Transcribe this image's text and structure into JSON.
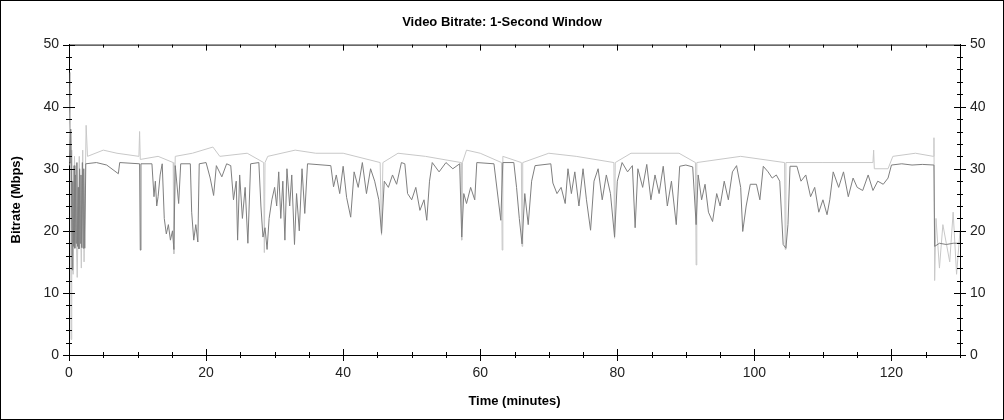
{
  "chart_data": {
    "type": "line",
    "title": "Video Bitrate: 1-Second Window",
    "xlabel": "Time (minutes)",
    "ylabel": "Bitrate (Mbps)",
    "marker": "none",
    "xlim": [
      0,
      130
    ],
    "xticks": [
      0,
      {
        "value": 5,
        "label": null
      },
      {
        "value": 10,
        "label": null
      },
      {
        "value": 15,
        "label": null
      },
      20,
      {
        "value": 25,
        "label": null
      },
      {
        "value": 30,
        "label": null
      },
      {
        "value": 35,
        "label": null
      },
      40,
      {
        "value": 45,
        "label": null
      },
      {
        "value": 50,
        "label": null
      },
      {
        "value": 55,
        "label": null
      },
      60,
      {
        "value": 65,
        "label": null
      },
      {
        "value": 70,
        "label": null
      },
      {
        "value": 75,
        "label": null
      },
      80,
      {
        "value": 85,
        "label": null
      },
      {
        "value": 90,
        "label": null
      },
      {
        "value": 95,
        "label": null
      },
      100,
      {
        "value": 105,
        "label": null
      },
      {
        "value": 110,
        "label": null
      },
      {
        "value": 115,
        "label": null
      },
      120,
      {
        "value": 125,
        "label": null
      },
      {
        "value": 130,
        "label": null
      }
    ],
    "ylim": [
      0,
      50
    ],
    "yticks": [
      0,
      {
        "value": 2,
        "label": null
      },
      {
        "value": 4,
        "label": null
      },
      {
        "value": 6,
        "label": null
      },
      {
        "value": 8,
        "label": null
      },
      10,
      {
        "value": 12,
        "label": null
      },
      {
        "value": 14,
        "label": null
      },
      {
        "value": 16,
        "label": null
      },
      {
        "value": 18,
        "label": null
      },
      20,
      {
        "value": 22,
        "label": null
      },
      {
        "value": 24,
        "label": null
      },
      {
        "value": 26,
        "label": null
      },
      {
        "value": 28,
        "label": null
      },
      30,
      {
        "value": 32,
        "label": null
      },
      {
        "value": 34,
        "label": null
      },
      {
        "value": 36,
        "label": null
      },
      {
        "value": 38,
        "label": null
      },
      40,
      {
        "value": 42,
        "label": null
      },
      {
        "value": 44,
        "label": null
      },
      {
        "value": 46,
        "label": null
      },
      {
        "value": 48,
        "label": null
      },
      50
    ],
    "y2lim": [
      0,
      50
    ],
    "y2ticks": [
      0,
      {
        "value": 2,
        "label": null
      },
      {
        "value": 4,
        "label": null
      },
      {
        "value": 6,
        "label": null
      },
      {
        "value": 8,
        "label": null
      },
      10,
      {
        "value": 12,
        "label": null
      },
      {
        "value": 14,
        "label": null
      },
      {
        "value": 16,
        "label": null
      },
      {
        "value": 18,
        "label": null
      },
      20,
      {
        "value": 22,
        "label": null
      },
      {
        "value": 24,
        "label": null
      },
      {
        "value": 26,
        "label": null
      },
      {
        "value": 28,
        "label": null
      },
      30,
      {
        "value": 32,
        "label": null
      },
      {
        "value": 34,
        "label": null
      },
      {
        "value": 36,
        "label": null
      },
      {
        "value": 38,
        "label": null
      },
      40,
      {
        "value": 42,
        "label": null
      },
      {
        "value": 44,
        "label": null
      },
      {
        "value": 46,
        "label": null
      },
      {
        "value": 48,
        "label": null
      },
      50
    ],
    "series": [
      {
        "color": "#7f7f7f",
        "x": [
          0,
          0.15,
          0.25,
          0.35,
          0.45,
          0.55,
          0.65,
          0.75,
          0.85,
          0.95,
          1.05,
          1.15,
          1.25,
          1.35,
          1.45,
          1.55,
          1.65,
          1.75,
          1.85,
          1.95,
          2.05,
          2.15,
          2.3,
          2.45,
          4,
          5.5,
          7.2,
          7.4,
          10.3,
          10.4,
          10.5,
          12.1,
          12.4,
          12.6,
          12.8,
          13,
          13.3,
          13.6,
          13.9,
          14.2,
          14.5,
          14.8,
          15.1,
          15.3,
          15.5,
          16,
          16.3,
          17.7,
          17.9,
          18.2,
          18.5,
          18.8,
          19,
          20,
          20.6,
          21.1,
          21.5,
          22.3,
          23,
          23.6,
          24,
          24.4,
          24.6,
          24.9,
          25.3,
          25.7,
          26.1,
          26.5,
          27.7,
          28,
          28.3,
          28.6,
          28.9,
          29.2,
          29.6,
          30,
          30.3,
          30.6,
          30.9,
          31.2,
          31.5,
          31.8,
          32.2,
          32.5,
          32.9,
          33.2,
          33.6,
          34,
          34.4,
          34.8,
          38.2,
          38.6,
          39,
          39.5,
          40,
          40.5,
          41.1,
          41.6,
          42.2,
          42.8,
          43.4,
          44,
          44.6,
          45.2,
          45.6,
          46,
          46.6,
          47.2,
          47.8,
          48.5,
          49,
          49.4,
          50,
          50.6,
          51.2,
          51.8,
          52.2,
          52.6,
          53,
          54,
          55,
          56,
          57,
          57.3,
          57.6,
          58,
          58.6,
          59.2,
          59.5,
          62,
          63,
          63.3,
          64.9,
          65.3,
          65.7,
          66.1,
          66.5,
          67,
          67.5,
          68,
          70.3,
          70.6,
          71.2,
          71.8,
          72.4,
          72.8,
          73.3,
          73.8,
          74.4,
          75,
          75.5,
          76.1,
          76.6,
          77.2,
          77.8,
          78.4,
          79,
          79.6,
          80,
          80.7,
          81.5,
          82.2,
          82.6,
          83,
          83.7,
          84.3,
          84.9,
          85.5,
          86.1,
          86.7,
          87.3,
          87.9,
          88.6,
          89.1,
          90,
          91,
          91.5,
          91.8,
          92.3,
          92.8,
          93.3,
          93.9,
          94.5,
          95,
          95.6,
          96.2,
          96.8,
          97.4,
          98,
          98.3,
          98.8,
          99.4,
          100.3,
          100.8,
          101.3,
          102,
          102.6,
          103.2,
          103.7,
          104.2,
          104.6,
          104.9,
          105.2,
          106.2,
          106.8,
          107.5,
          108.2,
          108.8,
          109.4,
          110,
          110.6,
          111,
          111.5,
          112.3,
          113,
          113.7,
          114.4,
          115,
          115.8,
          116.6,
          117.3,
          118,
          118.8,
          119.5,
          120,
          121.5,
          123,
          124.5,
          126.2,
          126.3,
          127,
          128,
          129,
          130
        ],
        "values": [
          30.5,
          31,
          36.4,
          30,
          13.7,
          28,
          17.5,
          30.5,
          17.2,
          29,
          18,
          31,
          17.5,
          27,
          17.1,
          30,
          18,
          29,
          17.3,
          31,
          17.2,
          30,
          17.2,
          30.8,
          31,
          30.6,
          29.2,
          31,
          30.8,
          16.9,
          30.8,
          30.8,
          25.5,
          28,
          24,
          25.5,
          29,
          30.8,
          22,
          19.5,
          21,
          18.5,
          20,
          17,
          30.5,
          24.4,
          30.8,
          30.8,
          23,
          18.5,
          21,
          18.2,
          30.8,
          31,
          28.5,
          25.7,
          30.5,
          28.7,
          30.8,
          30.5,
          25,
          28,
          18.5,
          29,
          22,
          27,
          18,
          30.8,
          31,
          24,
          19,
          20.5,
          17,
          22,
          25,
          27,
          24,
          29.5,
          22,
          28,
          18.5,
          30,
          24,
          29,
          17.8,
          26,
          20,
          30,
          22.8,
          30.8,
          30.5,
          27.1,
          29,
          26,
          30.4,
          25.4,
          22.2,
          29.5,
          27,
          31,
          26,
          30,
          28,
          25,
          19.6,
          28,
          27,
          29,
          27.5,
          31,
          30.8,
          26,
          25,
          27,
          23.3,
          25,
          21.7,
          28,
          31,
          29.5,
          31,
          30,
          30.8,
          19,
          26,
          24.4,
          27,
          25,
          31,
          30.8,
          21.7,
          31,
          31,
          27,
          22,
          17.9,
          26,
          21,
          28,
          30.5,
          30.8,
          27.7,
          26,
          27,
          24.4,
          30,
          26,
          29.5,
          24,
          30,
          25,
          20.1,
          28,
          30,
          25,
          29,
          26,
          19,
          28,
          31,
          29.5,
          30.5,
          20.5,
          30,
          27,
          30.7,
          25,
          29,
          26,
          30.4,
          24,
          28,
          21,
          30.4,
          30.6,
          30.3,
          21,
          29,
          25,
          27.5,
          23,
          21.5,
          26,
          24,
          28,
          25,
          29.5,
          30.5,
          27,
          19.9,
          24,
          27.5,
          27.5,
          25,
          30.4,
          29.5,
          28.5,
          29,
          28,
          17.8,
          17.2,
          21,
          30.4,
          30.4,
          28,
          29,
          25.5,
          27,
          23,
          25,
          22.6,
          25,
          29.5,
          27,
          29.5,
          25.5,
          28.5,
          27,
          26.5,
          29,
          26.5,
          28,
          27.5,
          28.5,
          30.6,
          30.8,
          30.6,
          30.7,
          30.6,
          17.5,
          18,
          17.8,
          18,
          18
        ]
      },
      {
        "color": "#c8c8c8",
        "x": [
          0,
          0.2,
          0.3,
          0.4,
          0.6,
          0.8,
          1.2,
          1.5,
          1.8,
          2,
          2.2,
          2.5,
          2.7,
          5,
          7,
          10.2,
          10.3,
          10.4,
          13,
          15.2,
          15.3,
          15.5,
          18,
          21,
          22,
          26,
          28.4,
          28.5,
          28.6,
          29,
          33,
          36,
          40,
          45.4,
          45.6,
          45.8,
          48,
          52,
          57.2,
          57.3,
          57.4,
          58,
          60,
          63.1,
          63.2,
          63.3,
          66,
          66.1,
          66.2,
          70,
          74,
          79.5,
          79.6,
          79.7,
          82,
          89,
          91.4,
          91.5,
          91.6,
          98,
          104.4,
          104.5,
          104.6,
          110,
          117.3,
          117.4,
          117.5,
          119.5,
          120.2,
          123.5,
          126.1,
          126.2,
          126.3,
          126.5,
          127,
          127.5,
          128.5,
          129,
          129.5,
          130
        ],
        "values": [
          31,
          45.5,
          2.5,
          33,
          13,
          32,
          12.5,
          32,
          14,
          33,
          15,
          37,
          32,
          33,
          32.5,
          32,
          36,
          31.5,
          32,
          31,
          16.3,
          32,
          32.5,
          33.5,
          32,
          32.5,
          31,
          16.5,
          31,
          32,
          33,
          32.5,
          32.5,
          31,
          19.3,
          31,
          32.5,
          32,
          31,
          18.5,
          31,
          33,
          32.5,
          31,
          16.9,
          32,
          31,
          17.5,
          31,
          32.5,
          32,
          31,
          18.8,
          31,
          32.5,
          32.5,
          31,
          14.5,
          31,
          32,
          31,
          17,
          31,
          31,
          31,
          33,
          30,
          30,
          32,
          32.5,
          32,
          35,
          12,
          22,
          14,
          21,
          15,
          23,
          13,
          20
        ]
      }
    ]
  }
}
